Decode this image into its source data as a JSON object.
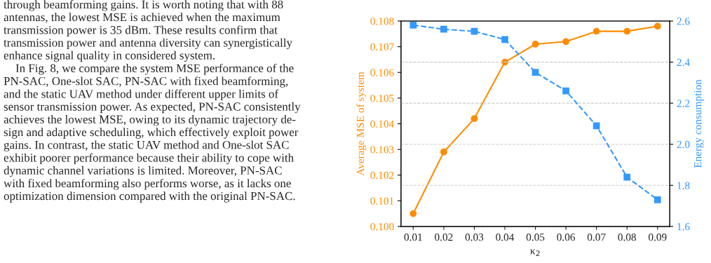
{
  "chart_data": {
    "type": "line",
    "xlabel": "κ$_{2}$",
    "ylabel": "Average MSE of system",
    "y2label": "Energy consumption",
    "x": [
      0.01,
      0.02,
      0.03,
      0.04,
      0.05,
      0.06,
      0.07,
      0.08,
      0.09
    ],
    "series": [
      {
        "color": "#ff8c00",
        "values": [
          0.1005,
          0.1029,
          0.1042,
          0.1064,
          0.1071,
          0.1072,
          0.1076,
          0.1076,
          0.1078
        ],
        "marker": "circle",
        "line_style": "solid"
      },
      {
        "color": "#3399ff",
        "axis": "y2",
        "values": [
          2.58,
          2.56,
          2.55,
          2.51,
          2.35,
          2.26,
          2.09,
          1.84,
          1.73
        ],
        "marker": "square",
        "line_style": "dashed"
      }
    ],
    "xlim": [
      0.006,
      0.094
    ],
    "xticks": [
      0.01,
      0.02,
      0.03,
      0.04,
      0.05,
      0.06,
      0.07,
      0.08,
      0.09
    ],
    "ylim": [
      0.1,
      0.108
    ],
    "yticks": [
      {
        "value": 0.1,
        "label": "0.100"
      },
      0.101,
      0.102,
      0.103,
      0.104,
      0.105,
      0.106,
      0.107,
      0.108
    ],
    "y2lim": [
      1.6,
      2.6
    ],
    "y2ticks": [
      1.6,
      1.8,
      {
        "value": 2.0,
        "label": "2.0"
      },
      2.2,
      2.4,
      2.6
    ],
    "grid": "y2",
    "annotations": [
      "through beamforming gains. It is worth noting that with 88\nantennas, the lowest MSE is achieved when the maximum\ntransmission power is 35 dBm. These results confirm that\ntransmission power and antenna diversity can synergistically\nenhance signal quality in considered system.\n    In Fig. 8, we compare the system MSE performance of the\nPN-SAC, One-slot SAC, PN-SAC with fixed beamforming,\nand the static UAV method under different upper limits of\nsensor transmission power. As expected, PN-SAC consistently\nachieves the lowest MSE, owing to its dynamic trajectory de-\nsign and adaptive scheduling, which effectively exploit power\ngains. In contrast, the static UAV method and One-slot SAC\nexhibit poorer performance because their ability to cope with\ndynamic channel variations is limited. Moreover, PN-SAC\nwith fixed beamforming also performs worse, as it lacks one\noptimization dimension compared with the original PN-SAC."
    ]
  }
}
